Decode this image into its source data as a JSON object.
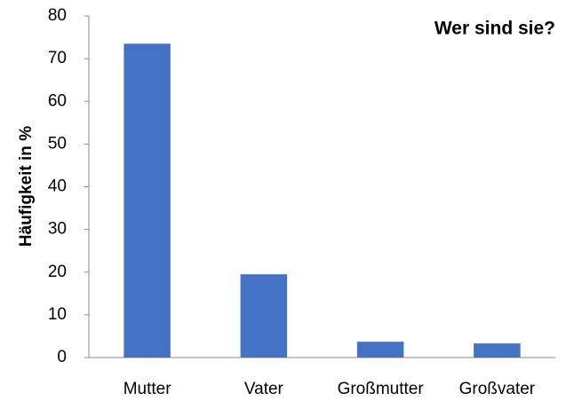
{
  "chart_data": {
    "type": "bar",
    "title": "Wer sind sie?",
    "y_label": "Häufigkeit in %",
    "categories": [
      "Mutter",
      "Vater",
      "Großmutter",
      "Großvater"
    ],
    "values": [
      73.5,
      19.5,
      3.7,
      3.3
    ],
    "color": "#4472c4",
    "ylim": [
      0,
      80
    ],
    "yticks": [
      0,
      10,
      20,
      30,
      40,
      50,
      60,
      70,
      80
    ],
    "grid": false
  }
}
